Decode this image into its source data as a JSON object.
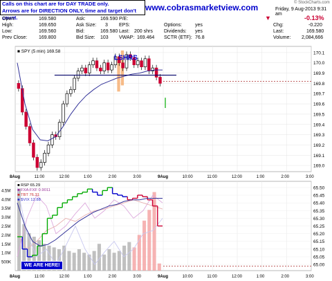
{
  "header": {
    "notice_line1": "Calls on this chart are for DAY TRADE only.",
    "notice_line2": "Arrows are for DIRECTION ONLY, time and target don't count.",
    "website": "www.cobrasmarketview.com",
    "brand": "© StockCharts.com",
    "datetime": "Friday, 9 Aug-2013  9:31 am"
  },
  "quote": {
    "open_label": "Open:",
    "open": "169.580",
    "high_label": "High:",
    "high": "169.650",
    "low_label": "Low:",
    "low": "169.560",
    "prev_label": "Prev Close:",
    "prev": "169.800",
    "ask_label": "Ask:",
    "ask": "169.590",
    "asksize_label": "Ask Size:",
    "asksize": "3",
    "bid_label": "Bid:",
    "bid": "169.580",
    "bidsize_label": "Bid Size:",
    "bidsize": "103",
    "pe_label": "P/E:",
    "eps_label": "EPS:",
    "last_label": "Last:",
    "last": "200 shrs",
    "vwap_label": "VWAP:",
    "vwap": "169.464",
    "options_label": "Options:",
    "options": "yes",
    "dividends_label": "Dividends:",
    "dividends": "yes",
    "sctr_label": "SCTR (ETF):",
    "sctr": "76.8",
    "pct": "-0.13%",
    "chg_label": "Chg:",
    "chg": "-0.220",
    "lastp_label": "Last:",
    "lastp": "169.580",
    "volume_label": "Volume:",
    "volume": "2,084,666"
  },
  "annotation": "LSHRS",
  "button": "WE ARE HERE!",
  "colors": {
    "up": "#00aa00",
    "down": "#cc0033",
    "price": "#000000",
    "ma": "#333399",
    "hline": "#000066",
    "accent": "#0000cc",
    "orange": "#f4a460"
  },
  "chart_data": [
    {
      "type": "candlestick",
      "legend": "SPY (5 min) 169.58",
      "x_ticks": [
        "8Aug",
        "11:00",
        "12:00",
        "1:00",
        "2:00",
        "3:00",
        "9Aug",
        "10:00",
        "11:00",
        "12:00",
        "1:00",
        "2:00",
        "3:00"
      ],
      "y_ticks": [
        170.1,
        170.0,
        169.9,
        169.8,
        169.7,
        169.6,
        169.5,
        169.4,
        169.3,
        169.2,
        169.1,
        169.0
      ],
      "ylim": [
        168.94,
        170.16
      ],
      "prices": [
        169.75,
        169.52,
        169.38,
        169.22,
        169.08,
        168.98,
        169.03,
        169.12,
        169.2,
        169.3,
        169.28,
        169.42,
        169.6,
        169.7,
        169.74,
        169.85,
        169.92,
        169.95,
        169.9,
        169.98,
        170.02,
        169.95,
        169.92,
        170.0,
        169.93,
        169.98,
        170.06,
        170.0,
        169.95,
        170.08,
        170.05,
        169.98,
        170.02,
        169.96,
        170.04,
        169.92,
        169.95,
        169.86,
        169.8
      ],
      "ma": [
        170.0,
        169.6,
        169.35,
        169.25,
        169.24,
        169.28,
        169.38,
        169.5,
        169.6,
        169.68,
        169.74,
        169.79,
        169.82,
        169.85,
        169.87,
        169.89,
        169.9,
        169.92,
        169.93,
        169.93
      ],
      "hline": 169.88,
      "dashed_level": 169.82
    },
    {
      "type": "indicator",
      "legend": [
        "RSP 65.29",
        "FXA:FXF 0.9011",
        "TBT 76.31",
        "$VIX 12.88"
      ],
      "y_ticks_right": [
        65.5,
        65.45,
        65.4,
        65.35,
        65.3,
        65.25,
        65.2,
        65.15,
        65.1,
        65.05,
        65.0
      ],
      "y_ticks_left": [
        "4.5M",
        "4.0M",
        "3.5M",
        "3.0M",
        "2.5M",
        "2.0M",
        "1.5M",
        "1.0M",
        "500K"
      ],
      "x_ticks": [
        "8Aug",
        "11:00",
        "12:00",
        "1:00",
        "2:00",
        "3:00",
        "9Aug",
        "10:00",
        "11:00",
        "12:00",
        "1:00",
        "2:00",
        "3:00"
      ],
      "ylim": [
        64.96,
        65.54
      ],
      "rsp": [
        65.18,
        65.1,
        65.05,
        65.06,
        65.12,
        65.2,
        65.3,
        65.32,
        65.37,
        65.4,
        65.42,
        65.44,
        65.46,
        65.47,
        65.49,
        65.47,
        65.45,
        65.48,
        65.5,
        65.46,
        65.45,
        65.44,
        65.42,
        65.43,
        65.45,
        65.44,
        65.42,
        65.38,
        65.25
      ],
      "volume_m": [
        4.6,
        2.6,
        2.1,
        1.9,
        1.7,
        1.5,
        1.4,
        1.3,
        1.2,
        1.4,
        1.1,
        1.0,
        1.2,
        1.0,
        0.9,
        1.1,
        1.5,
        0.9,
        1.2,
        1.0,
        1.1,
        1.4,
        1.6,
        1.3,
        2.0,
        2.8,
        3.4,
        4.4,
        0.4
      ],
      "dashed_level": 64.99
    }
  ]
}
